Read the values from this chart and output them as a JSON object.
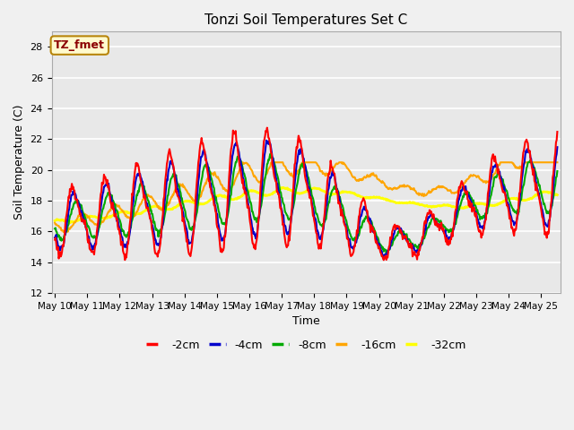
{
  "title": "Tonzi Soil Temperatures Set C",
  "xlabel": "Time",
  "ylabel": "Soil Temperature (C)",
  "ylim": [
    12,
    29
  ],
  "yticks": [
    12,
    14,
    16,
    18,
    20,
    22,
    24,
    26,
    28
  ],
  "xtick_labels": [
    "May 10",
    "May 11",
    "May 12",
    "May 13",
    "May 14",
    "May 15",
    "May 16",
    "May 17",
    "May 18",
    "May 19",
    "May 20",
    "May 21",
    "May 22",
    "May 23",
    "May 24",
    "May 25"
  ],
  "annotation_text": "TZ_fmet",
  "annotation_color": "#8B0000",
  "annotation_bg": "#FFFACD",
  "annotation_border": "#B8860B",
  "colors": {
    "-2cm": "#FF0000",
    "-4cm": "#0000CC",
    "-8cm": "#00AA00",
    "-16cm": "#FFA500",
    "-32cm": "#FFFF00"
  },
  "bg_color": "#E8E8E8",
  "grid_color": "#FFFFFF",
  "fig_bg": "#F0F0F0"
}
